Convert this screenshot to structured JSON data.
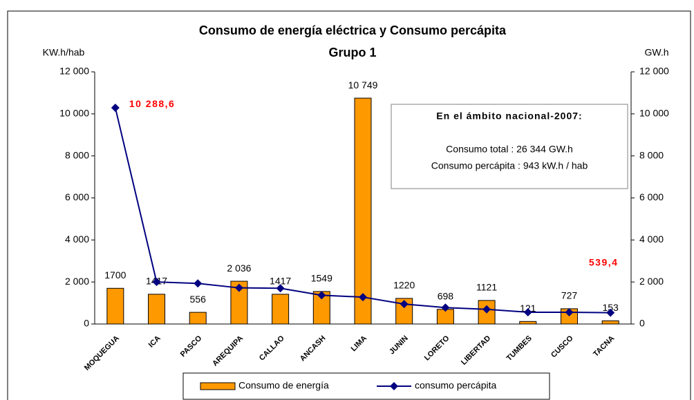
{
  "chart_data": {
    "type": "bar",
    "title": "Consumo de energía eléctrica y Consumo percápita",
    "subtitle": "Grupo 1",
    "ylabel": "KW.h/hab",
    "y2label": "GW.h",
    "categories": [
      "MOQUEGUA",
      "ICA",
      "PASCO",
      "AREQUIPA",
      "CALLAO",
      "ANCASH",
      "LIMA",
      "JUNIN",
      "LORETO",
      "LIBERTAD",
      "TUMBES",
      "CUSCO",
      "TACNA"
    ],
    "series": [
      {
        "name": "Consumo de energía",
        "type": "bar",
        "axis": "y2",
        "color": "#FF9900",
        "values": [
          1700,
          1417,
          556,
          2036,
          1417,
          1549,
          10749,
          1220,
          698,
          1121,
          121,
          727,
          153
        ],
        "value_labels": [
          "1700",
          "1417",
          "556",
          "2 036",
          "1417",
          "1549",
          "10 749",
          "1220",
          "698",
          "1121",
          "121",
          "727",
          "153"
        ]
      },
      {
        "name": "consumo percápita",
        "type": "line",
        "color": "#000080",
        "values": [
          10288.6,
          2000,
          1930,
          1720,
          1700,
          1370,
          1280,
          950,
          780,
          700,
          560,
          560,
          539.4
        ],
        "value_labels": [
          "10 288,6",
          null,
          null,
          null,
          null,
          null,
          null,
          null,
          null,
          null,
          null,
          null,
          "539,4"
        ]
      }
    ],
    "ylim": [
      0,
      12000
    ],
    "yticks": [
      0,
      {
        "value": 2000,
        "label": "2 000"
      },
      {
        "value": 4000,
        "label": "4 000"
      },
      {
        "value": 6000,
        "label": "6 000"
      },
      {
        "value": 8000,
        "label": "8 000"
      },
      {
        "value": 10000,
        "label": "10 000"
      },
      {
        "value": 12000,
        "label": "12 000"
      }
    ],
    "y2lim": [
      0,
      12000
    ],
    "y2ticks": [
      0,
      {
        "value": 2000,
        "label": "2 000"
      },
      {
        "value": 4000,
        "label": "4 000"
      },
      {
        "value": 6000,
        "label": "6 000"
      },
      {
        "value": 8000,
        "label": "8 000"
      },
      {
        "value": 10000,
        "label": "10 000"
      },
      {
        "value": 12000,
        "label": "12 000"
      }
    ],
    "annotations": [
      "En el ámbito nacional-2007:",
      "Consumo total : 26 344 GW.h",
      "Consumo percápita : 943 kW.h / hab"
    ],
    "legend": "bottom"
  }
}
